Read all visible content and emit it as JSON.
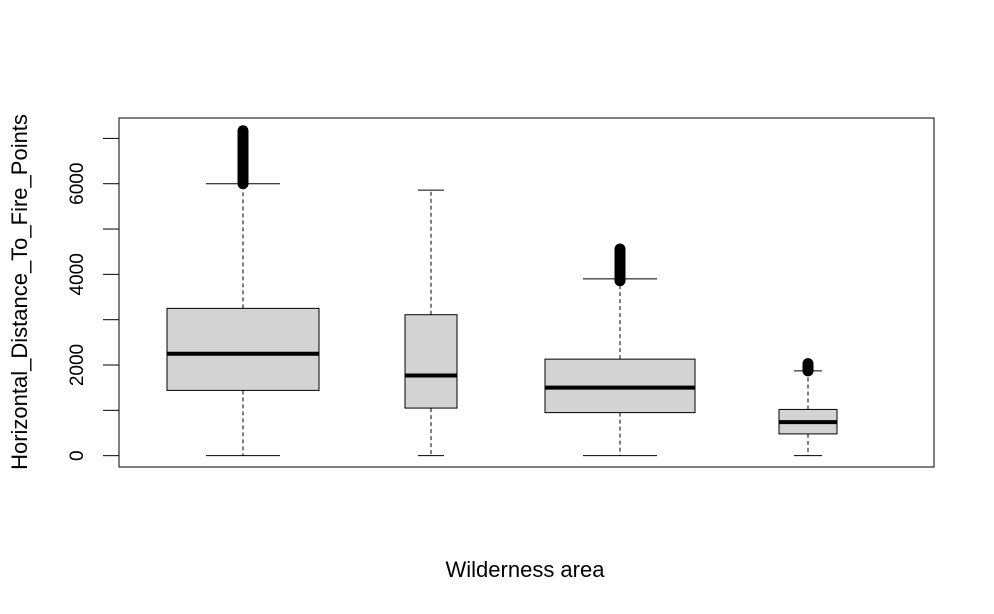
{
  "chart_data": {
    "type": "box",
    "title": "",
    "xlabel": "Wilderness area",
    "ylabel": "Horizontal_Distance_To_Fire_Points",
    "ylim": [
      -250,
      7450
    ],
    "yticks": [
      0,
      2000,
      4000,
      6000
    ],
    "ytick_labels": [
      "0",
      "2000",
      "4000",
      "6000"
    ],
    "grid": false,
    "legend": "none",
    "box_fill": "#d3d3d3",
    "boxes": [
      {
        "lower_whisker": 0,
        "q1": 1440,
        "median": 2250,
        "q3": 3250,
        "upper_whisker": 6000,
        "outlier_range": [
          6000,
          7170
        ]
      },
      {
        "lower_whisker": 0,
        "q1": 1050,
        "median": 1770,
        "q3": 3110,
        "upper_whisker": 5860,
        "outlier_range": null
      },
      {
        "lower_whisker": 0,
        "q1": 950,
        "median": 1500,
        "q3": 2130,
        "upper_whisker": 3900,
        "outlier_range": [
          3860,
          4560
        ]
      },
      {
        "lower_whisker": 0,
        "q1": 480,
        "median": 740,
        "q3": 1020,
        "upper_whisker": 1870,
        "outlier_range": [
          1870,
          2030
        ]
      }
    ]
  }
}
